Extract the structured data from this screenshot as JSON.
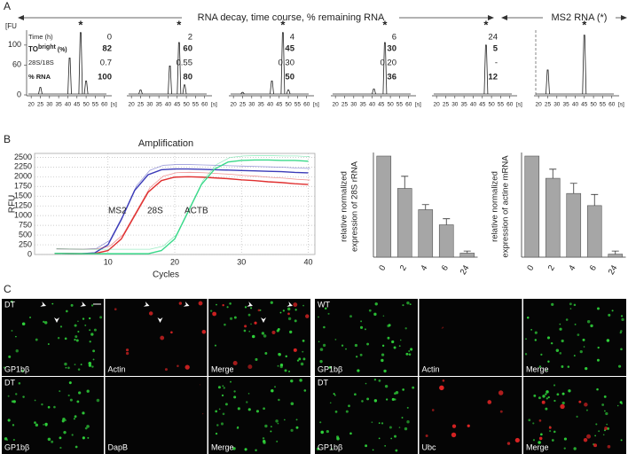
{
  "panel_labels": {
    "a": "A",
    "b": "B",
    "c": "C"
  },
  "panel_a": {
    "header": "RNA decay, time course, % remaining RNA",
    "header_right": "MS2 RNA (*)",
    "row_labels": {
      "time": "Time (h)",
      "to": "TO",
      "to_sup": "bright",
      "to_suffix": " (%)",
      "ratio": "28S/18S",
      "rna": "% RNA"
    },
    "columns": [
      {
        "time": "0",
        "to": "82",
        "ratio": "0.7",
        "rna": "100"
      },
      {
        "time": "2",
        "to": "60",
        "ratio": "0.55",
        "rna": "80"
      },
      {
        "time": "4",
        "to": "45",
        "ratio": "0.30",
        "rna": "50"
      },
      {
        "time": "6",
        "to": "30",
        "ratio": "0.20",
        "rna": "36"
      },
      {
        "time": "24",
        "to": "5",
        "ratio": "-",
        "rna": "12"
      }
    ]
  },
  "chart_data": [
    {
      "type": "electropherogram",
      "y_label": "[FU",
      "x_unit": "[s]",
      "xlim": [
        17.5,
        64
      ],
      "xticks": [
        20,
        25,
        30,
        35,
        40,
        45,
        50,
        55,
        60
      ],
      "ylim": [
        0,
        130
      ],
      "yticks": [
        0,
        60,
        100
      ],
      "peaks": [
        {
          "x": 25,
          "height": 15
        },
        {
          "x": 41,
          "height": 74
        },
        {
          "x": 47,
          "height": 125,
          "label": "*"
        },
        {
          "x": 50,
          "height": 28
        }
      ]
    },
    {
      "type": "electropherogram",
      "x_unit": "[s]",
      "xlim": [
        17.5,
        64
      ],
      "xticks": [
        20,
        25,
        30,
        35,
        40,
        45,
        50,
        55,
        60
      ],
      "ylim": [
        0,
        130
      ],
      "peaks": [
        {
          "x": 25,
          "height": 10
        },
        {
          "x": 41,
          "height": 58
        },
        {
          "x": 46,
          "height": 105,
          "label": "*"
        },
        {
          "x": 49,
          "height": 20
        }
      ]
    },
    {
      "type": "electropherogram",
      "x_unit": "[s]",
      "xlim": [
        17.5,
        64
      ],
      "xticks": [
        20,
        25,
        30,
        35,
        40,
        45,
        50,
        55,
        60
      ],
      "ylim": [
        0,
        130
      ],
      "peaks": [
        {
          "x": 25,
          "height": 5
        },
        {
          "x": 41,
          "height": 28
        },
        {
          "x": 47,
          "height": 125,
          "label": "*"
        },
        {
          "x": 50,
          "height": 10
        }
      ]
    },
    {
      "type": "electropherogram",
      "x_unit": "[s]",
      "xlim": [
        17.5,
        64
      ],
      "xticks": [
        20,
        25,
        30,
        35,
        40,
        45,
        50,
        55,
        60
      ],
      "ylim": [
        0,
        130
      ],
      "peaks": [
        {
          "x": 41,
          "height": 12
        },
        {
          "x": 47,
          "height": 105,
          "label": "*"
        }
      ]
    },
    {
      "type": "electropherogram",
      "x_unit": "[s]",
      "xlim": [
        17.5,
        64
      ],
      "xticks": [
        20,
        25,
        30,
        35,
        40,
        45,
        50,
        55,
        60
      ],
      "ylim": [
        0,
        130
      ],
      "peaks": [
        {
          "x": 47,
          "height": 100,
          "label": "*"
        }
      ]
    },
    {
      "type": "electropherogram",
      "x_unit": "[s]",
      "xlim": [
        17.5,
        64
      ],
      "xticks": [
        20,
        25,
        30,
        35,
        40,
        45,
        50,
        55,
        60
      ],
      "ylim": [
        0,
        130
      ],
      "peaks": [
        {
          "x": 25,
          "height": 50
        },
        {
          "x": 45,
          "height": 120,
          "label": "*"
        }
      ]
    },
    {
      "type": "line",
      "title": "Amplification",
      "x_label": "Cycles",
      "y_label": "RFU",
      "x": [
        2,
        4,
        6,
        8,
        10,
        12,
        14,
        16,
        18,
        20,
        22,
        24,
        26,
        28,
        30,
        32,
        34,
        36,
        38,
        40
      ],
      "xlim": [
        -1,
        41
      ],
      "xticks": [
        10,
        20,
        30,
        40
      ],
      "ylim": [
        0,
        2600
      ],
      "yticks": [
        0,
        250,
        500,
        750,
        1000,
        1250,
        1500,
        1750,
        2000,
        2250,
        2500
      ],
      "grid": true,
      "series": [
        {
          "name": "MS2",
          "color": "#3b3bb8",
          "values": [
            30,
            25,
            20,
            40,
            250,
            900,
            1650,
            2050,
            2180,
            2200,
            2200,
            2190,
            2180,
            2170,
            2160,
            2150,
            2140,
            2130,
            2110,
            2100
          ]
        },
        {
          "name": "28S",
          "color": "#e03030",
          "values": [
            30,
            25,
            20,
            25,
            100,
            400,
            1000,
            1600,
            1900,
            1990,
            2000,
            1990,
            1970,
            1950,
            1920,
            1900,
            1870,
            1850,
            1820,
            1800
          ]
        },
        {
          "name": "ACTB",
          "color": "#3ad98a",
          "values": [
            30,
            25,
            20,
            20,
            20,
            20,
            20,
            20,
            100,
            400,
            1100,
            1800,
            2200,
            2380,
            2420,
            2430,
            2430,
            2420,
            2420,
            2400
          ]
        }
      ]
    },
    {
      "type": "bar",
      "y_label": [
        "relative normalized",
        "expression of 28S rRNA"
      ],
      "categories": [
        "0",
        "2",
        "4",
        "6",
        "24"
      ],
      "values": [
        1.0,
        0.68,
        0.47,
        0.32,
        0.04
      ],
      "errors": [
        0,
        0.12,
        0.05,
        0.06,
        0.02
      ],
      "ylim": [
        0,
        1
      ],
      "color": "#a6a6a6"
    },
    {
      "type": "bar",
      "y_label": [
        "relative normalized",
        "expression of actine mRNA"
      ],
      "categories": [
        "0",
        "2",
        "4",
        "6",
        "24"
      ],
      "values": [
        1.0,
        0.78,
        0.63,
        0.51,
        0.03
      ],
      "errors": [
        0,
        0.09,
        0.1,
        0.11,
        0.03
      ],
      "ylim": [
        0,
        1
      ],
      "color": "#a6a6a6"
    }
  ],
  "panel_c": {
    "tiles": [
      {
        "corner": "DT",
        "label": "GP1bβ",
        "channel": "green"
      },
      {
        "label": "Actin",
        "channel": "red"
      },
      {
        "label": "Merge",
        "channel": "merge"
      },
      {
        "corner": "DT",
        "label": "GP1bβ",
        "channel": "green"
      },
      {
        "label": "DapB",
        "channel": "empty"
      },
      {
        "label": "Merge",
        "channel": "green"
      },
      {
        "corner": "WT",
        "label": "GP1bβ",
        "channel": "green"
      },
      {
        "label": "Actin",
        "channel": "empty"
      },
      {
        "label": "Merge",
        "channel": "green"
      },
      {
        "corner": "DT",
        "label": "GP1bβ",
        "channel": "green"
      },
      {
        "label": "Ubc",
        "channel": "red"
      },
      {
        "label": "Merge",
        "channel": "merge"
      }
    ]
  }
}
